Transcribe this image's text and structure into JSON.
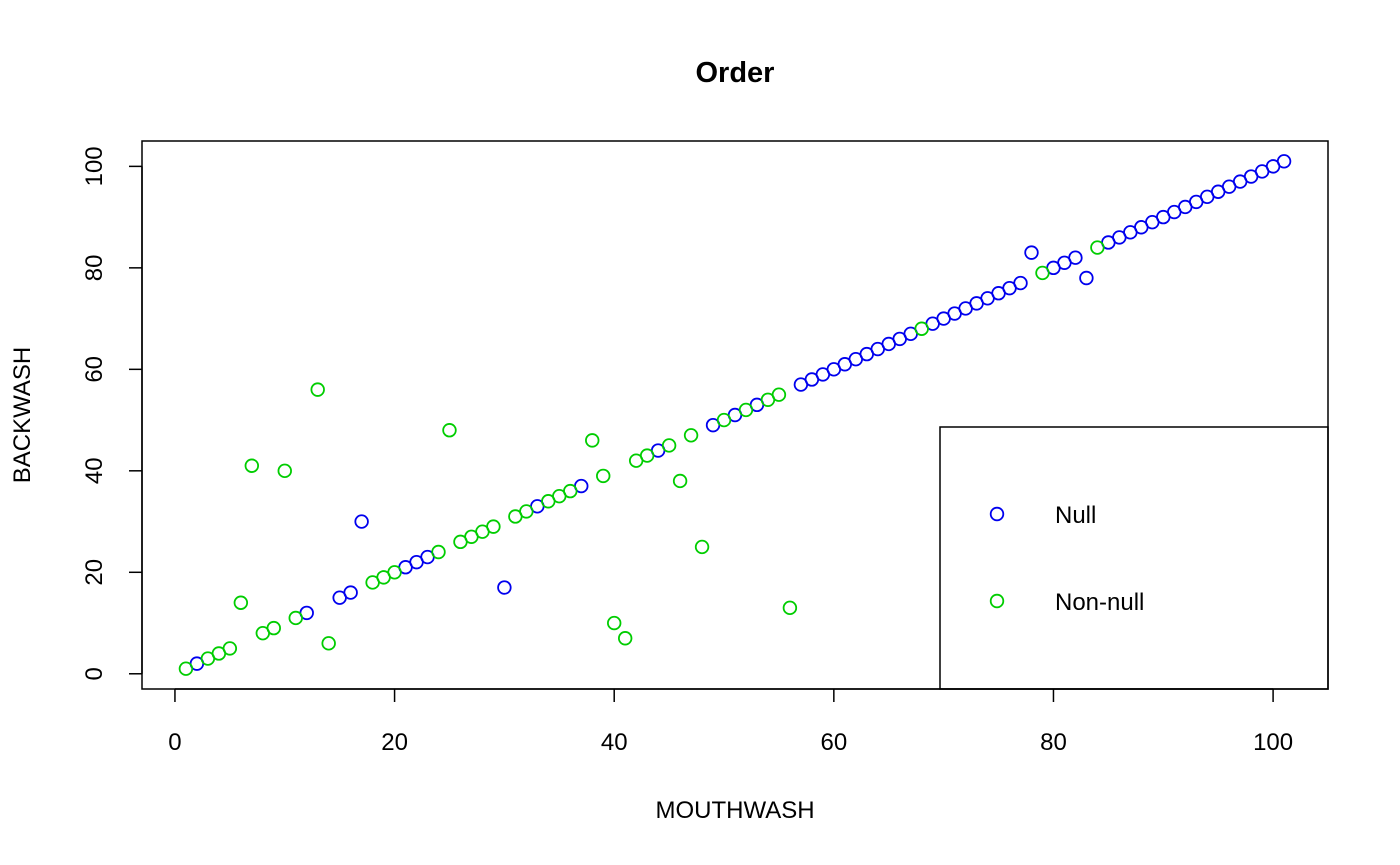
{
  "chart_data": {
    "type": "scatter",
    "title": "Order",
    "xlabel": "MOUTHWASH",
    "ylabel": "BACKWASH",
    "xlim": [
      -3,
      105
    ],
    "ylim": [
      -3,
      105
    ],
    "x_ticks": [
      0,
      20,
      40,
      60,
      80,
      100
    ],
    "y_ticks": [
      0,
      20,
      40,
      60,
      80,
      100
    ],
    "grid": false,
    "legend_position": "bottom-right",
    "colors": {
      "Null": "#0000ee",
      "Non-null": "#00cd00"
    },
    "series": [
      {
        "name": "Null",
        "points": [
          [
            2,
            2
          ],
          [
            12,
            12
          ],
          [
            15,
            15
          ],
          [
            16,
            16
          ],
          [
            17,
            30
          ],
          [
            21,
            21
          ],
          [
            22,
            22
          ],
          [
            23,
            23
          ],
          [
            30,
            17
          ],
          [
            33,
            33
          ],
          [
            37,
            37
          ],
          [
            44,
            44
          ],
          [
            49,
            49
          ],
          [
            51,
            51
          ],
          [
            53,
            53
          ],
          [
            57,
            57
          ],
          [
            58,
            58
          ],
          [
            59,
            59
          ],
          [
            60,
            60
          ],
          [
            61,
            61
          ],
          [
            62,
            62
          ],
          [
            63,
            63
          ],
          [
            64,
            64
          ],
          [
            65,
            65
          ],
          [
            66,
            66
          ],
          [
            67,
            67
          ],
          [
            69,
            69
          ],
          [
            70,
            70
          ],
          [
            71,
            71
          ],
          [
            72,
            72
          ],
          [
            73,
            73
          ],
          [
            74,
            74
          ],
          [
            75,
            75
          ],
          [
            76,
            76
          ],
          [
            77,
            77
          ],
          [
            78,
            83
          ],
          [
            80,
            80
          ],
          [
            81,
            81
          ],
          [
            82,
            82
          ],
          [
            83,
            78
          ],
          [
            85,
            85
          ],
          [
            86,
            86
          ],
          [
            87,
            87
          ],
          [
            88,
            88
          ],
          [
            89,
            89
          ],
          [
            90,
            90
          ],
          [
            91,
            91
          ],
          [
            92,
            92
          ],
          [
            93,
            93
          ],
          [
            94,
            94
          ],
          [
            95,
            95
          ],
          [
            96,
            96
          ],
          [
            97,
            97
          ],
          [
            98,
            98
          ],
          [
            99,
            99
          ],
          [
            100,
            100
          ],
          [
            101,
            101
          ]
        ]
      },
      {
        "name": "Non-null",
        "points": [
          [
            1,
            1
          ],
          [
            3,
            3
          ],
          [
            4,
            4
          ],
          [
            5,
            5
          ],
          [
            6,
            14
          ],
          [
            7,
            41
          ],
          [
            8,
            8
          ],
          [
            9,
            9
          ],
          [
            10,
            40
          ],
          [
            11,
            11
          ],
          [
            13,
            56
          ],
          [
            14,
            6
          ],
          [
            18,
            18
          ],
          [
            19,
            19
          ],
          [
            20,
            20
          ],
          [
            24,
            24
          ],
          [
            25,
            48
          ],
          [
            26,
            26
          ],
          [
            27,
            27
          ],
          [
            28,
            28
          ],
          [
            29,
            29
          ],
          [
            31,
            31
          ],
          [
            32,
            32
          ],
          [
            34,
            34
          ],
          [
            35,
            35
          ],
          [
            36,
            36
          ],
          [
            38,
            46
          ],
          [
            39,
            39
          ],
          [
            40,
            10
          ],
          [
            41,
            7
          ],
          [
            42,
            42
          ],
          [
            43,
            43
          ],
          [
            45,
            45
          ],
          [
            46,
            38
          ],
          [
            47,
            47
          ],
          [
            48,
            25
          ],
          [
            50,
            50
          ],
          [
            52,
            52
          ],
          [
            54,
            54
          ],
          [
            55,
            55
          ],
          [
            56,
            13
          ],
          [
            68,
            68
          ],
          [
            79,
            79
          ],
          [
            84,
            84
          ]
        ]
      }
    ]
  }
}
